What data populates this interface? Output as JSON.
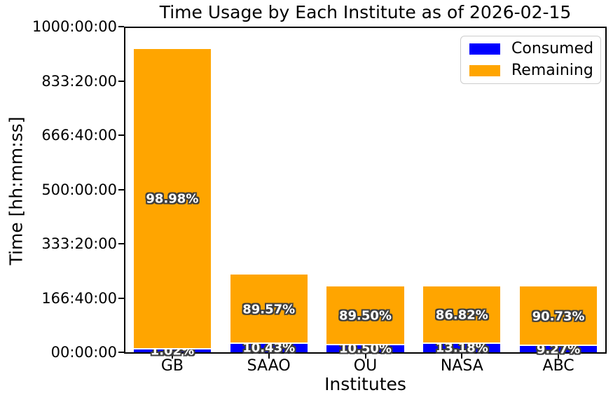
{
  "figure": {
    "title": "Time Usage by Each Institute as of 2026-02-15",
    "xlabel": "Institutes",
    "ylabel": "Time [hh:mm:ss]"
  },
  "legend": {
    "items": [
      {
        "label": "Consumed",
        "color": "#0000ff"
      },
      {
        "label": "Remaining",
        "color": "#ffa500"
      }
    ]
  },
  "chart_data": {
    "type": "bar",
    "stacked": true,
    "title": "Time Usage by Each Institute as of 2026-02-15",
    "xlabel": "Institutes",
    "ylabel": "Time [hh:mm:ss]",
    "categories": [
      "GB",
      "SAAO",
      "OU",
      "NASA",
      "ABC"
    ],
    "series": [
      {
        "name": "Consumed",
        "color": "#0000ff",
        "values_hours": [
          9.5,
          24.8,
          21.2,
          26.6,
          18.7
        ],
        "percent_labels": [
          "1.02%",
          "10.43%",
          "10.50%",
          "13.18%",
          "9.27%"
        ]
      },
      {
        "name": "Remaining",
        "color": "#ffa500",
        "values_hours": [
          921.8,
          213.4,
          180.5,
          175.1,
          183.0
        ],
        "percent_labels": [
          "98.98%",
          "89.57%",
          "89.50%",
          "86.82%",
          "90.73%"
        ]
      }
    ],
    "totals_hours": [
      931.3,
      238.2,
      201.7,
      201.7,
      201.7
    ],
    "y_ticks": [
      "00:00:00",
      "166:40:00",
      "333:20:00",
      "500:00:00",
      "666:40:00",
      "833:20:00",
      "1000:00:00"
    ],
    "ylim_hours": [
      0,
      1000
    ],
    "grid": false,
    "legend_position": "upper right",
    "bar_width_fraction": 0.8,
    "bar_label_color": "#ffffff",
    "bar_label_outline": "#3f3f3f"
  }
}
